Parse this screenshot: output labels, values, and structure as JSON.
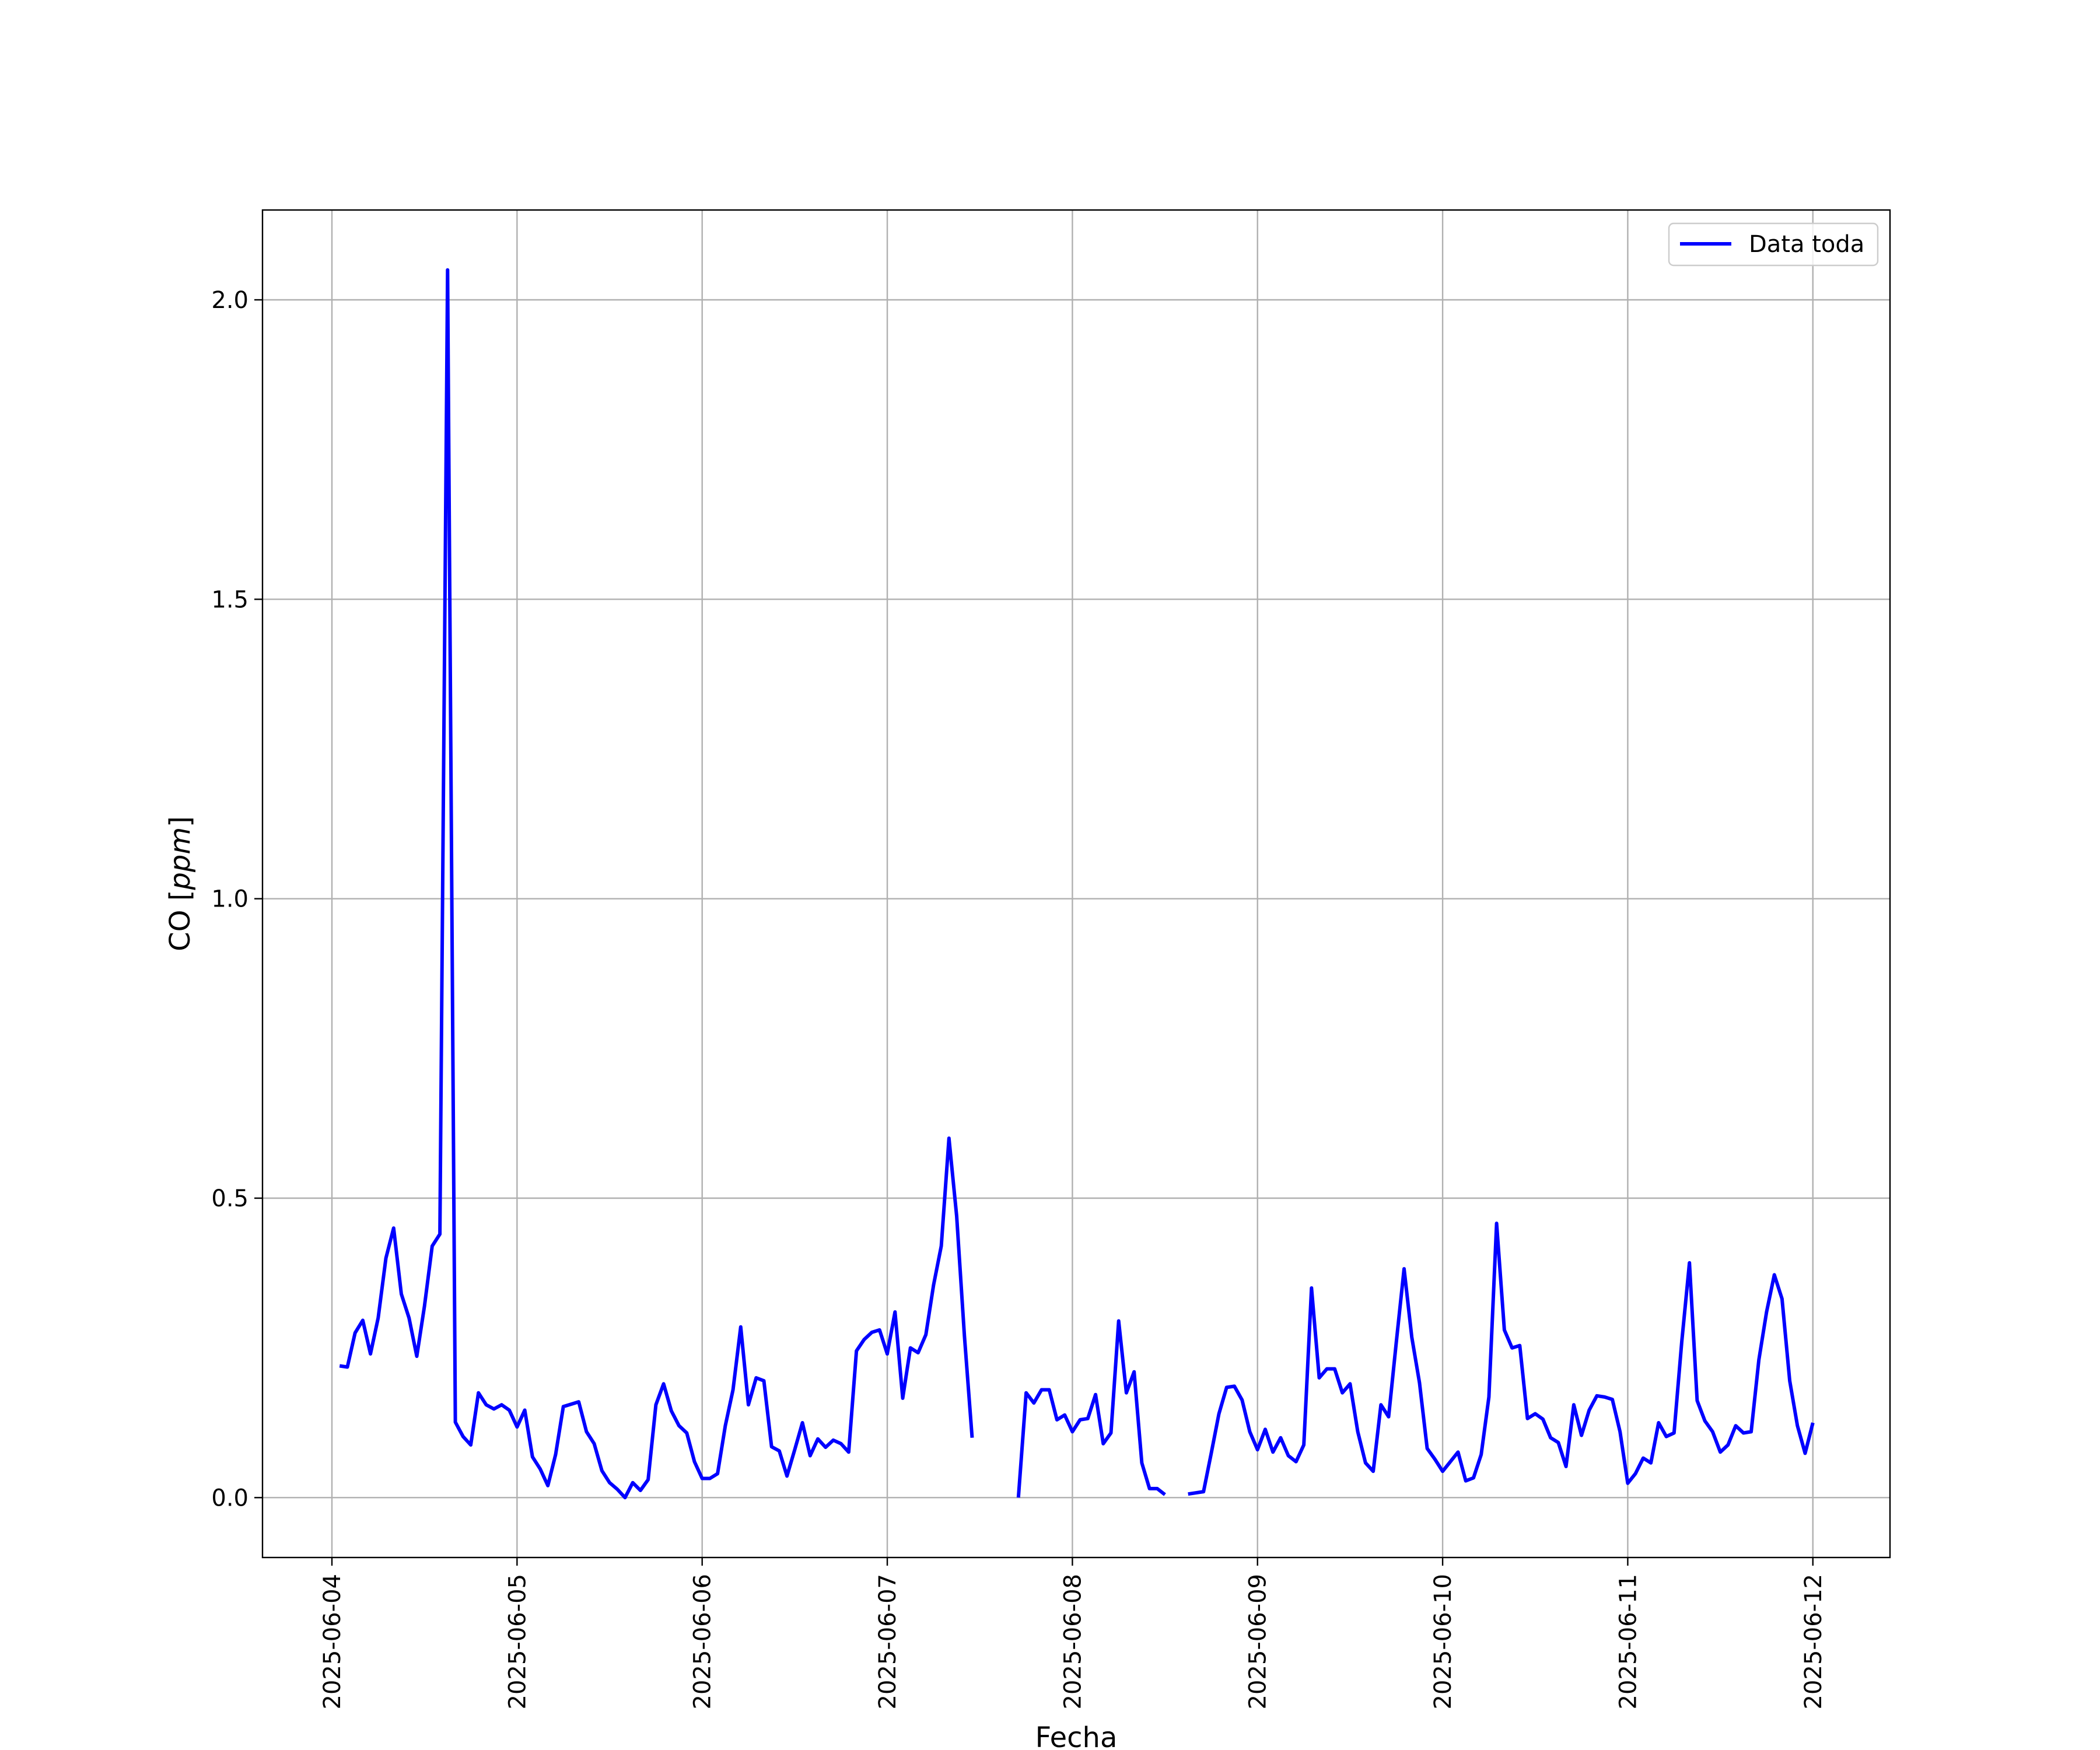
{
  "chart_data": {
    "type": "line",
    "title": "",
    "xlabel": "Fecha",
    "ylabel_main": "CO [",
    "ylabel_unit": "ppm",
    "ylabel_close": "]",
    "grid": true,
    "legend_position": "top-right",
    "xlim": [
      "2025-06-03T15:00",
      "2025-06-12T10:00"
    ],
    "ylim": [
      -0.1,
      2.15
    ],
    "x_ticks": [
      "2025-06-04",
      "2025-06-05",
      "2025-06-06",
      "2025-06-07",
      "2025-06-08",
      "2025-06-09",
      "2025-06-10",
      "2025-06-11",
      "2025-06-12"
    ],
    "y_ticks": [
      0.0,
      0.5,
      1.0,
      1.5,
      2.0
    ],
    "y_tick_labels": [
      "0.0",
      "0.5",
      "1.0",
      "1.5",
      "2.0"
    ],
    "series": [
      {
        "name": "Data toda",
        "color": "#0000ff",
        "x": [
          "2025-06-04T01:00",
          "2025-06-04T02:00",
          "2025-06-04T03:00",
          "2025-06-04T04:00",
          "2025-06-04T05:00",
          "2025-06-04T06:00",
          "2025-06-04T07:00",
          "2025-06-04T08:00",
          "2025-06-04T09:00",
          "2025-06-04T10:00",
          "2025-06-04T11:00",
          "2025-06-04T12:00",
          "2025-06-04T13:00",
          "2025-06-04T14:00",
          "2025-06-04T15:00",
          "2025-06-04T16:00",
          "2025-06-04T17:00",
          "2025-06-04T18:00",
          "2025-06-04T19:00",
          "2025-06-04T20:00",
          "2025-06-04T21:00",
          "2025-06-04T22:00",
          "2025-06-04T23:00",
          "2025-06-05T00:00",
          "2025-06-05T01:00",
          "2025-06-05T02:00",
          "2025-06-05T03:00",
          "2025-06-05T04:00",
          "2025-06-05T05:00",
          "2025-06-05T06:00",
          "2025-06-05T07:00",
          "2025-06-05T08:00",
          "2025-06-05T09:00",
          "2025-06-05T10:00",
          "2025-06-05T11:00",
          "2025-06-05T12:00",
          "2025-06-05T13:00",
          "2025-06-05T14:00",
          "2025-06-05T15:00",
          "2025-06-05T16:00",
          "2025-06-05T17:00",
          "2025-06-05T18:00",
          "2025-06-05T19:00",
          "2025-06-05T20:00",
          "2025-06-05T21:00",
          "2025-06-05T22:00",
          "2025-06-05T23:00",
          "2025-06-06T00:00",
          "2025-06-06T01:00",
          "2025-06-06T02:00",
          "2025-06-06T03:00",
          "2025-06-06T04:00",
          "2025-06-06T05:00",
          "2025-06-06T06:00",
          "2025-06-06T07:00",
          "2025-06-06T08:00",
          "2025-06-06T09:00",
          "2025-06-06T10:00",
          "2025-06-06T11:00",
          "2025-06-06T12:00",
          "2025-06-06T13:00",
          "2025-06-06T14:00",
          "2025-06-06T15:00",
          "2025-06-06T16:00",
          "2025-06-06T17:00",
          "2025-06-06T18:00",
          "2025-06-06T19:00",
          "2025-06-06T20:00",
          "2025-06-06T21:00",
          "2025-06-06T22:00",
          "2025-06-06T23:00",
          "2025-06-07T00:00",
          "2025-06-07T01:00",
          "2025-06-07T02:00",
          "2025-06-07T03:00",
          "2025-06-07T04:00",
          "2025-06-07T05:00",
          "2025-06-07T06:00",
          "2025-06-07T07:00",
          "2025-06-07T08:00",
          "2025-06-07T09:00",
          "2025-06-07T10:00",
          "2025-06-07T11:00",
          null,
          "2025-06-07T17:00",
          "2025-06-07T18:00",
          "2025-06-07T19:00",
          "2025-06-07T20:00",
          "2025-06-07T21:00",
          "2025-06-07T22:00",
          "2025-06-07T23:00",
          "2025-06-08T00:00",
          "2025-06-08T01:00",
          "2025-06-08T02:00",
          "2025-06-08T03:00",
          "2025-06-08T04:00",
          "2025-06-08T05:00",
          "2025-06-08T06:00",
          "2025-06-08T07:00",
          "2025-06-08T08:00",
          "2025-06-08T09:00",
          "2025-06-08T10:00",
          "2025-06-08T11:00",
          "2025-06-08T12:00",
          null,
          "2025-06-08T15:00",
          "2025-06-08T17:00",
          "2025-06-08T18:00",
          "2025-06-08T19:00",
          "2025-06-08T20:00",
          "2025-06-08T21:00",
          "2025-06-08T22:00",
          "2025-06-08T23:00",
          "2025-06-09T00:00",
          "2025-06-09T01:00",
          "2025-06-09T02:00",
          "2025-06-09T03:00",
          "2025-06-09T04:00",
          "2025-06-09T05:00",
          "2025-06-09T06:00",
          "2025-06-09T07:00",
          "2025-06-09T08:00",
          "2025-06-09T09:00",
          "2025-06-09T10:00",
          "2025-06-09T11:00",
          "2025-06-09T12:00",
          "2025-06-09T13:00",
          "2025-06-09T14:00",
          "2025-06-09T15:00",
          "2025-06-09T16:00",
          "2025-06-09T17:00",
          "2025-06-09T18:00",
          "2025-06-09T19:00",
          "2025-06-09T20:00",
          "2025-06-09T21:00",
          "2025-06-09T22:00",
          "2025-06-09T23:00",
          "2025-06-10T00:00",
          "2025-06-10T01:00",
          "2025-06-10T02:00",
          "2025-06-10T03:00",
          "2025-06-10T04:00",
          "2025-06-10T05:00",
          "2025-06-10T06:00",
          "2025-06-10T07:00",
          "2025-06-10T08:00",
          "2025-06-10T09:00",
          "2025-06-10T10:00",
          "2025-06-10T11:00",
          "2025-06-10T12:00",
          "2025-06-10T13:00",
          "2025-06-10T14:00",
          "2025-06-10T15:00",
          "2025-06-10T16:00",
          "2025-06-10T17:00",
          "2025-06-10T18:00",
          "2025-06-10T19:00",
          "2025-06-10T20:00",
          "2025-06-10T21:00",
          "2025-06-10T22:00",
          "2025-06-10T23:00",
          "2025-06-11T00:00",
          "2025-06-11T01:00",
          "2025-06-11T02:00",
          "2025-06-11T03:00",
          "2025-06-11T04:00",
          "2025-06-11T05:00",
          "2025-06-11T06:00",
          "2025-06-11T07:00",
          "2025-06-11T08:00",
          "2025-06-11T09:00",
          "2025-06-11T10:00",
          "2025-06-11T11:00",
          "2025-06-11T12:00",
          "2025-06-11T13:00",
          "2025-06-11T14:00",
          "2025-06-11T15:00",
          "2025-06-11T16:00",
          "2025-06-11T17:00",
          "2025-06-11T18:00",
          "2025-06-11T19:00",
          "2025-06-11T20:00",
          "2025-06-11T21:00",
          "2025-06-11T22:00",
          "2025-06-11T23:00",
          "2025-06-12T00:00"
        ],
        "y": [
          0.22,
          0.218,
          0.275,
          0.296,
          0.24,
          0.3,
          0.4,
          0.45,
          0.34,
          0.3,
          0.236,
          0.32,
          0.42,
          0.44,
          2.05,
          0.126,
          0.102,
          0.088,
          0.175,
          0.155,
          0.148,
          0.155,
          0.146,
          0.118,
          0.146,
          0.068,
          0.048,
          0.02,
          0.072,
          0.152,
          0.156,
          0.16,
          0.11,
          0.09,
          0.045,
          0.025,
          0.014,
          0.0,
          0.025,
          0.012,
          0.03,
          0.155,
          0.19,
          0.145,
          0.12,
          0.108,
          0.06,
          0.032,
          0.032,
          0.04,
          0.12,
          0.18,
          0.285,
          0.155,
          0.2,
          0.195,
          0.085,
          0.078,
          0.036,
          0.08,
          0.125,
          0.07,
          0.098,
          0.084,
          0.096,
          0.09,
          0.076,
          0.245,
          0.264,
          0.276,
          0.28,
          0.24,
          0.31,
          0.166,
          0.25,
          0.242,
          0.272,
          0.355,
          0.42,
          0.6,
          0.47,
          0.27,
          0.1,
          null,
          0.0,
          0.175,
          0.158,
          0.18,
          0.18,
          0.13,
          0.138,
          0.11,
          0.13,
          0.132,
          0.172,
          0.09,
          0.108,
          0.295,
          0.175,
          0.21,
          0.058,
          0.015,
          0.015,
          0.005,
          null,
          0.006,
          0.01,
          0.074,
          0.14,
          0.184,
          0.186,
          0.163,
          0.11,
          0.08,
          0.114,
          0.076,
          0.1,
          0.07,
          0.06,
          0.088,
          0.35,
          0.2,
          0.215,
          0.215,
          0.175,
          0.19,
          0.11,
          0.058,
          0.044,
          0.155,
          0.135,
          0.26,
          0.382,
          0.268,
          0.192,
          0.082,
          0.064,
          0.044,
          0.06,
          0.076,
          0.028,
          0.033,
          0.072,
          0.168,
          0.458,
          0.28,
          0.25,
          0.254,
          0.132,
          0.14,
          0.131,
          0.1,
          0.092,
          0.052,
          0.155,
          0.104,
          0.146,
          0.17,
          0.168,
          0.164,
          0.11,
          0.024,
          0.04,
          0.066,
          0.058,
          0.125,
          0.102,
          0.108,
          0.26,
          0.392,
          0.162,
          0.128,
          0.11,
          0.076,
          0.088,
          0.12,
          0.108,
          0.11,
          0.23,
          0.31,
          0.372,
          0.332,
          0.195,
          0.12,
          0.074,
          0.125
        ]
      }
    ]
  }
}
